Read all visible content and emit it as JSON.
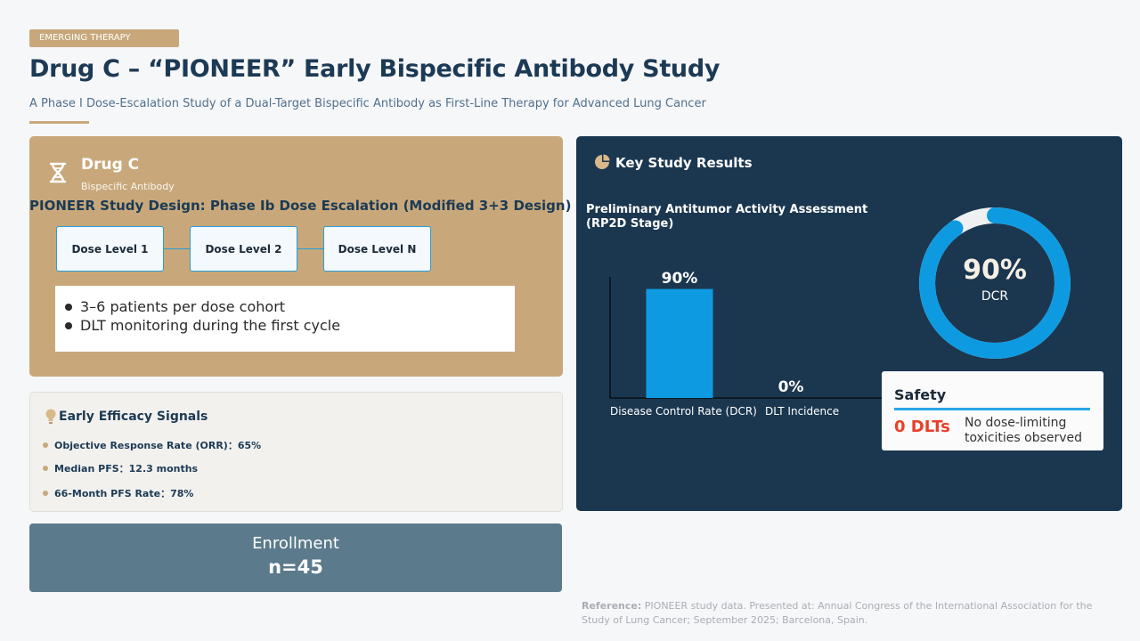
{
  "header": {
    "tag": "EMERGING THERAPY",
    "title": "Drug C – “PIONEER” Early Bispecific Antibody Study",
    "subtitle": "A Phase I Dose-Escalation Study of a Dual-Target Bispecific Antibody as First-Line Therapy for Advanced Lung Cancer"
  },
  "drug": {
    "name": "Drug C",
    "type": "Bispecific Antibody",
    "icon": "dna-icon",
    "design_title": "PIONEER Study Design: Phase Ib Dose Escalation (Modified 3+3 Design)",
    "dose_levels": [
      "Dose Level 1",
      "Dose Level 2",
      "Dose Level N"
    ],
    "bullets": [
      "3–6 patients per dose cohort",
      "DLT monitoring during the first cycle"
    ]
  },
  "efficacy": {
    "icon": "lightbulb-icon",
    "title": "Early Efficacy Signals",
    "items": [
      {
        "label": "Objective Response Rate (ORR)：",
        "value": "65%"
      },
      {
        "label": "Median PFS：",
        "value": "12.3 months"
      },
      {
        "label": "66-Month PFS Rate：",
        "value": "78%"
      }
    ]
  },
  "enrollment": {
    "label": "Enrollment",
    "value": "n=45"
  },
  "results": {
    "icon": "pie-chart-icon",
    "title": "Key Study Results",
    "donut": {
      "value_label": "90%",
      "label": "DCR",
      "fraction": 0.9,
      "color": "#0e9ae0",
      "track_color": "#eef0f2"
    },
    "safety": {
      "title": "Safety",
      "count": "0 DLTs",
      "description": "No dose-limiting toxicities observed"
    }
  },
  "chart_data": {
    "type": "bar",
    "title": "Preliminary Antitumor Activity Assessment (RP2D Stage)",
    "categories": [
      "Disease Control Rate (DCR)",
      "DLT Incidence"
    ],
    "values": [
      90,
      0
    ],
    "data_labels": [
      "90%",
      "0%"
    ],
    "ylim": [
      0,
      100
    ],
    "bar_color": "#0e9ae0",
    "grid": false
  },
  "reference": {
    "label": "Reference:",
    "text": "PIONEER study data. Presented at: Annual Congress of the International Association for the Study of Lung Cancer; September 2025; Barcelona, Spain."
  }
}
